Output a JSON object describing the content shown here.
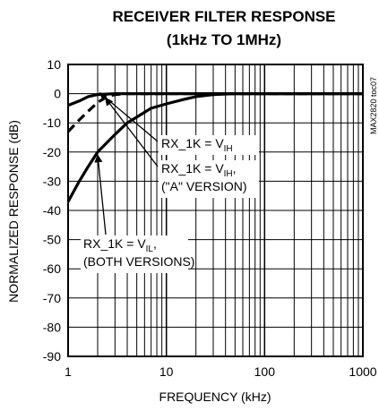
{
  "chart_data": {
    "type": "line",
    "title": "RECEIVER FILTER RESPONSE",
    "subtitle": "(1kHz TO 1MHz)",
    "xlabel": "FREQUENCY (kHz)",
    "ylabel": "NORMALIZED RESPONSE (dB)",
    "xscale": "log",
    "xlim": [
      1,
      1000
    ],
    "ylim": [
      -90,
      10
    ],
    "x_ticks": [
      "1",
      "10",
      "100",
      "1000"
    ],
    "y_ticks": [
      "10",
      "0",
      "-10",
      "-20",
      "-30",
      "-40",
      "-50",
      "-60",
      "-70",
      "-80",
      "-90"
    ],
    "grid": true,
    "part_number": "MAX2820 toc07",
    "series": [
      {
        "label_main": "RX_1K = V",
        "label_sub": "IH",
        "style": "solid",
        "points": [
          [
            1,
            -4
          ],
          [
            1.3,
            -2.5
          ],
          [
            1.6,
            -1
          ],
          [
            2,
            -0.3
          ],
          [
            3,
            0
          ],
          [
            10,
            0
          ],
          [
            100,
            0
          ],
          [
            1000,
            0
          ]
        ]
      },
      {
        "label_main": "RX_1K = V",
        "label_sub": "IH",
        "label_suffix": ",",
        "label_line2": "(\"A\" VERSION)",
        "style": "dashed",
        "points": [
          [
            1,
            -13
          ],
          [
            1.3,
            -9
          ],
          [
            1.6,
            -6
          ],
          [
            2,
            -3
          ],
          [
            2.5,
            -1
          ],
          [
            3,
            -0.3
          ],
          [
            4,
            0
          ],
          [
            10,
            0
          ],
          [
            1000,
            0
          ]
        ]
      },
      {
        "label_main": "RX_1K = V",
        "label_sub": "IL",
        "label_suffix": ",",
        "label_line2": "(BOTH VERSIONS)",
        "style": "solid",
        "points": [
          [
            1,
            -37
          ],
          [
            1.3,
            -30
          ],
          [
            1.6,
            -25
          ],
          [
            2,
            -20
          ],
          [
            3,
            -14
          ],
          [
            4,
            -10
          ],
          [
            5,
            -8
          ],
          [
            7,
            -5
          ],
          [
            10,
            -3.5
          ],
          [
            15,
            -2
          ],
          [
            20,
            -1
          ],
          [
            30,
            -0.3
          ],
          [
            50,
            0
          ],
          [
            100,
            0
          ],
          [
            1000,
            0
          ]
        ]
      }
    ]
  }
}
